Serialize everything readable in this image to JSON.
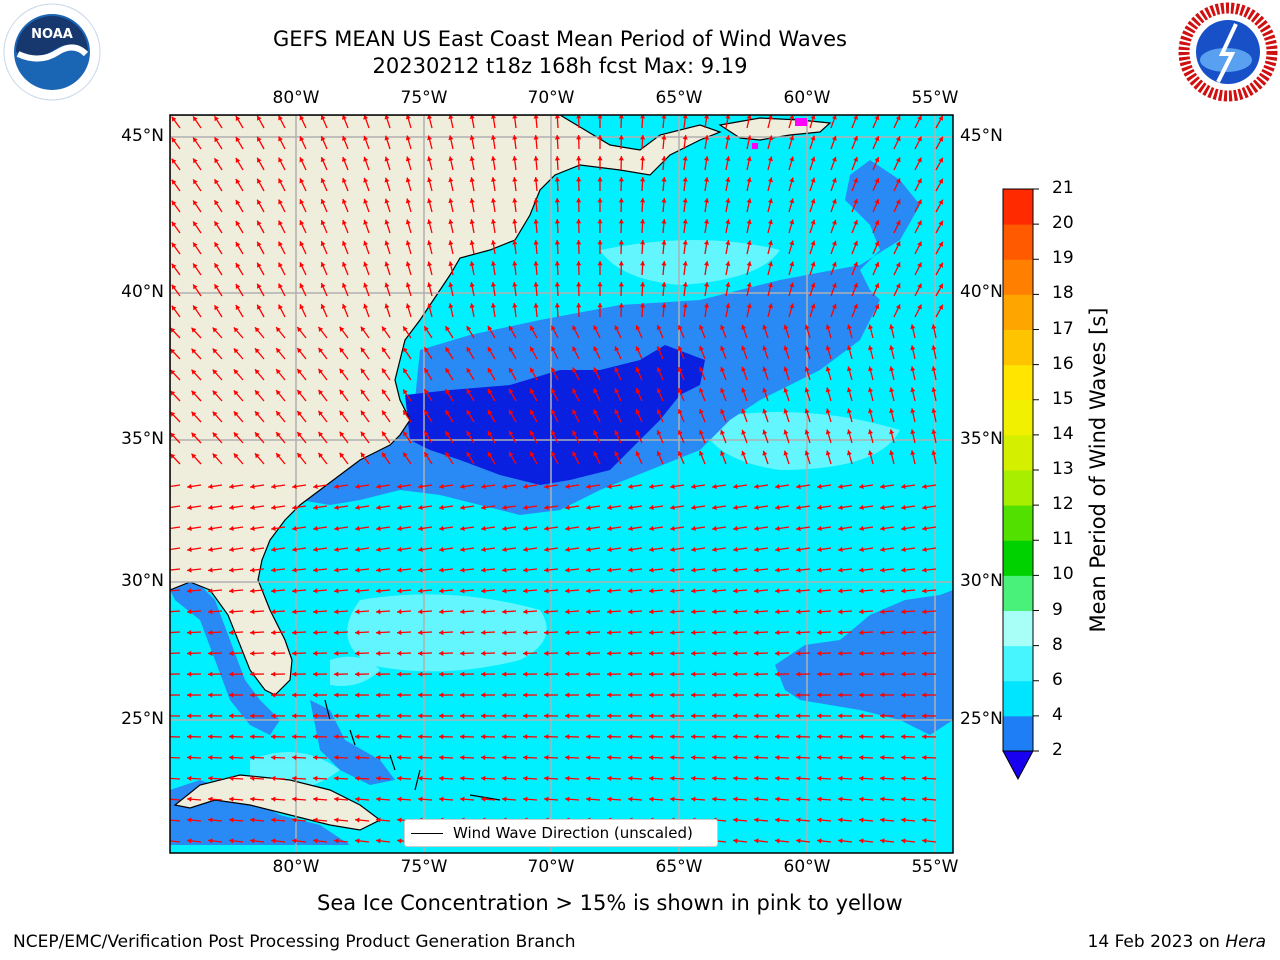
{
  "header": {
    "title_line1": "GEFS MEAN US East Coast Mean Period of Wind Waves",
    "title_line2": "20230212 t18z 168h fcst   Max: 9.19"
  },
  "axes": {
    "lon_labels": [
      "80°W",
      "75°W",
      "70°W",
      "65°W",
      "60°W",
      "55°W"
    ],
    "lat_labels": [
      "45°N",
      "40°N",
      "35°N",
      "30°N",
      "25°N"
    ]
  },
  "colorbar": {
    "label": "Mean Period of Wind Waves [s]",
    "ticks": [
      "2",
      "4",
      "6",
      "8",
      "9",
      "10",
      "11",
      "12",
      "13",
      "14",
      "15",
      "16",
      "17",
      "18",
      "19",
      "20",
      "21"
    ],
    "colors": [
      "#0a2be0",
      "#1e7ef5",
      "#00e5ff",
      "#46f5ff",
      "#a8fff8",
      "#49f07a",
      "#00d200",
      "#52e000",
      "#a8ee00",
      "#d4f000",
      "#f0f000",
      "#ffe500",
      "#ffc400",
      "#ffa500",
      "#ff8000",
      "#ff5a00",
      "#ff2a00",
      "#ff0000"
    ],
    "under_color": "#1a00f0"
  },
  "legend": {
    "label": "Wind Wave Direction (unscaled)"
  },
  "footer": {
    "ice_note": "Sea Ice Concentration > 15% is shown in pink to yellow",
    "credit": "NCEP/EMC/Verification Post Processing Product Generation Branch",
    "date": "14 Feb 2023 on ",
    "system": "Hera"
  },
  "logos": {
    "left": "NOAA",
    "right": "NATIONAL WEATHER SERVICE"
  },
  "map_colors": {
    "land": "#efeddc",
    "arrow": "#ff0000",
    "grid": "#b0b0b0",
    "ocean_base": "#00f0ff",
    "light_band": "#6ef6ff",
    "blue_band": "#2a8af5",
    "deep_band": "#0a20e0"
  }
}
